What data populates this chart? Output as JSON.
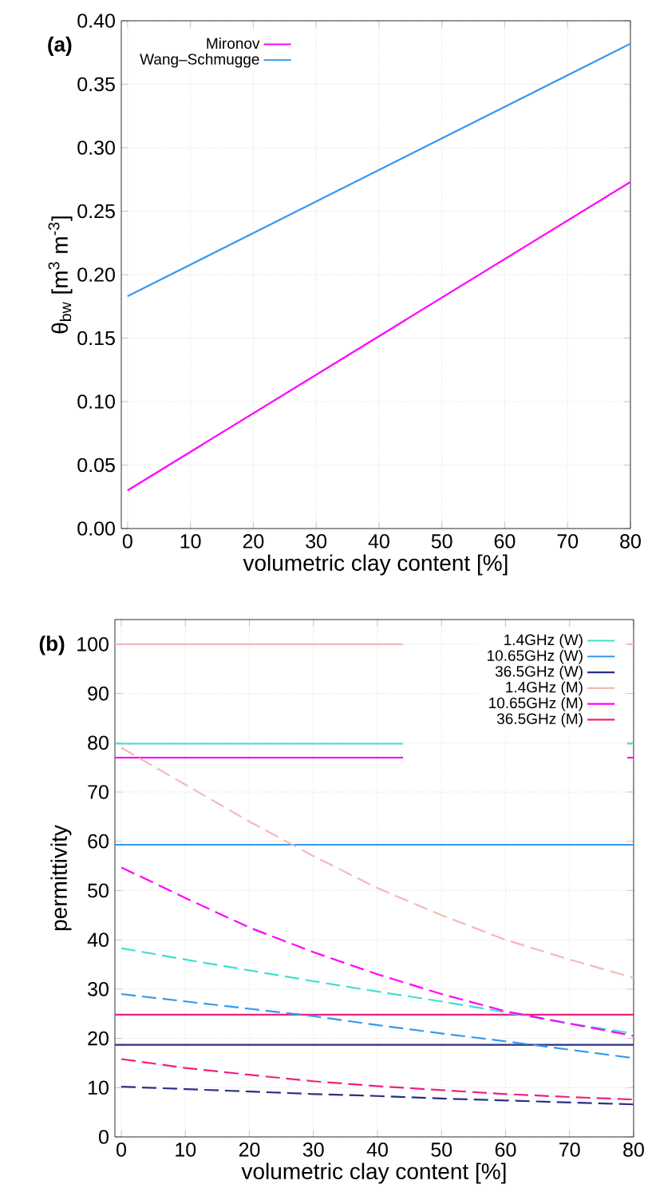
{
  "chart_data": [
    {
      "type": "line",
      "title": "(a)",
      "xlabel": "volumetric clay content [%]",
      "ylabel": "θ$_{bw}$ [m$^{3}$ m$^{-3}$]",
      "xlim": [
        -1,
        80
      ],
      "xticks": [
        0,
        10,
        20,
        30,
        40,
        50,
        60,
        70,
        80
      ],
      "ylim": [
        0,
        0.4
      ],
      "yticks": [
        {
          "value": 0,
          "label": "0.00"
        },
        {
          "value": 0.05,
          "label": "0.05"
        },
        {
          "value": 0.1,
          "label": "0.10"
        },
        {
          "value": 0.15,
          "label": "0.15"
        },
        {
          "value": 0.2,
          "label": "0.20"
        },
        {
          "value": 0.25,
          "label": "0.25"
        },
        {
          "value": 0.3,
          "label": "0.30"
        },
        {
          "value": 0.35,
          "label": "0.35"
        },
        {
          "value": 0.4,
          "label": "0.40"
        }
      ],
      "grid": true,
      "legend": "top left",
      "line_style": "solid",
      "marker": "none",
      "series": [
        {
          "name": "Mironov",
          "color": "#ff00ff",
          "x": [
            0,
            80
          ],
          "values": [
            0.03,
            0.273
          ]
        },
        {
          "name": "Wang–Schmugge",
          "color": "#3399ee",
          "x": [
            0,
            80
          ],
          "values": [
            0.183,
            0.382
          ]
        }
      ]
    },
    {
      "type": "line",
      "title": "(b)",
      "xlabel": "volumetric clay content [%]",
      "ylabel": "permittivity",
      "xlim": [
        -1,
        80
      ],
      "xticks": [
        0,
        10,
        20,
        30,
        40,
        50,
        60,
        70,
        80
      ],
      "ylim": [
        0,
        105
      ],
      "yticks": [
        0,
        10,
        20,
        30,
        40,
        50,
        60,
        70,
        80,
        90,
        100
      ],
      "grid": true,
      "legend": "top right",
      "marker": "none",
      "series": [
        {
          "name": "1.4GHz (W)",
          "color": "#40e0d0",
          "line_style": "solid",
          "x": [
            -1,
            44,
            60,
            79,
            80
          ],
          "values": [
            79.8,
            79.8,
            null,
            79.8,
            79.8
          ]
        },
        {
          "name": "10.65GHz (W)",
          "color": "#3399ee",
          "line_style": "solid",
          "x": [
            -1,
            80
          ],
          "values": [
            59.3,
            59.3
          ]
        },
        {
          "name": "36.5GHz (W)",
          "color": "#2a2f85",
          "line_style": "solid",
          "x": [
            -1,
            80
          ],
          "values": [
            18.7,
            18.7
          ]
        },
        {
          "name": "1.4GHz (M)",
          "color": "#f4b9b8",
          "line_style": "solid",
          "x": [
            -1,
            44,
            60,
            79,
            80
          ],
          "values": [
            100,
            100,
            null,
            100,
            100
          ]
        },
        {
          "name": "10.65GHz (M)",
          "color": "#ff00ff",
          "line_style": "solid",
          "x": [
            -1,
            44,
            60,
            79,
            80
          ],
          "values": [
            77,
            77,
            null,
            77,
            77
          ]
        },
        {
          "name": "36.5GHz (M)",
          "color": "#f0207f",
          "line_style": "solid",
          "x": [
            -1,
            80
          ],
          "values": [
            24.8,
            24.8
          ]
        },
        {
          "color": "#40e0d0",
          "line_style": "dashed",
          "x": [
            0,
            10,
            20,
            30,
            40,
            50,
            60,
            70,
            80
          ],
          "values": [
            38.3,
            36,
            33.8,
            31.6,
            29.5,
            27.5,
            25.3,
            23,
            21
          ]
        },
        {
          "color": "#3399ee",
          "line_style": "dashed",
          "x": [
            0,
            10,
            20,
            30,
            40,
            50,
            60,
            70,
            80
          ],
          "values": [
            29,
            27.5,
            26,
            24.5,
            22.7,
            21,
            19.4,
            17.7,
            16
          ]
        },
        {
          "color": "#2a2f85",
          "line_style": "dashed",
          "x": [
            0,
            10,
            20,
            30,
            40,
            50,
            60,
            70,
            80
          ],
          "values": [
            10.2,
            9.7,
            9.2,
            8.7,
            8.3,
            7.8,
            7.4,
            7,
            6.6
          ]
        },
        {
          "color": "#f4b9b8",
          "line_style": "dashed",
          "x": [
            0,
            10,
            20,
            30,
            40,
            50,
            60,
            70,
            80
          ],
          "values": [
            79,
            71.5,
            64,
            57,
            50.5,
            45,
            40,
            36,
            32.3
          ]
        },
        {
          "color": "#ff00ff",
          "line_style": "dashed",
          "x": [
            0,
            10,
            20,
            30,
            40,
            50,
            60,
            70,
            80
          ],
          "values": [
            54.7,
            48.5,
            42.5,
            37.5,
            33,
            29,
            25.5,
            23,
            20.5
          ]
        },
        {
          "color": "#f0207f",
          "line_style": "dashed",
          "x": [
            0,
            10,
            20,
            30,
            40,
            50,
            60,
            70,
            80
          ],
          "values": [
            15.8,
            14,
            12.6,
            11.3,
            10.3,
            9.5,
            8.7,
            8.1,
            7.6
          ]
        }
      ]
    }
  ]
}
